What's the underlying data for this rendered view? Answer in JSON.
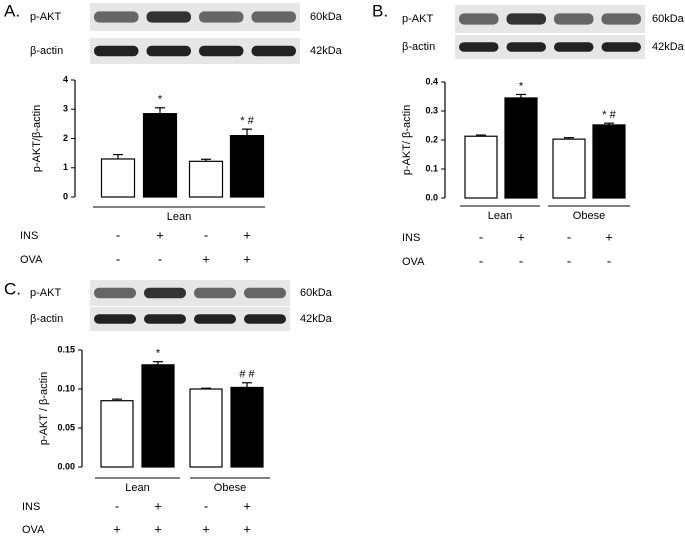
{
  "chart_data": [
    {
      "type": "bar",
      "panel": "A.",
      "blots": [
        {
          "label": "p-AKT",
          "size": "60kDa"
        },
        {
          "label": "β-actin",
          "size": "42kDa"
        }
      ],
      "y_label": "p-AKT/β-actin",
      "values": [
        1.3,
        2.85,
        1.22,
        2.1
      ],
      "errors": [
        0.15,
        0.2,
        0.07,
        0.22
      ],
      "annotations": [
        null,
        "*",
        null,
        "* #"
      ],
      "bar_colors": [
        "#ffffff",
        "#000000",
        "#ffffff",
        "#000000"
      ],
      "ylim": [
        0,
        4
      ],
      "yticks": [
        0,
        1,
        2,
        3,
        4
      ],
      "groups": [
        "Lean"
      ],
      "conditions": [
        {
          "name": "INS",
          "signs": [
            "-",
            "+",
            "-",
            "+"
          ]
        },
        {
          "name": "OVA",
          "signs": [
            "-",
            "-",
            "+",
            "+"
          ]
        }
      ]
    },
    {
      "type": "bar",
      "panel": "B.",
      "blots": [
        {
          "label": "p-AKT",
          "size": "60kDa"
        },
        {
          "label": "β-actin",
          "size": "42kDa"
        }
      ],
      "y_label": "p-AKT/ β-actin",
      "values": [
        0.213,
        0.345,
        0.203,
        0.252
      ],
      "errors": [
        0.004,
        0.012,
        0.005,
        0.006
      ],
      "annotations": [
        null,
        "*",
        null,
        "* #"
      ],
      "bar_colors": [
        "#ffffff",
        "#000000",
        "#ffffff",
        "#000000"
      ],
      "ylim": [
        0,
        0.4
      ],
      "yticks": [
        {
          "value": 0,
          "label": "0.0"
        },
        0.1,
        0.2,
        0.3,
        0.4
      ],
      "groups": [
        "Lean",
        "Obese"
      ],
      "conditions": [
        {
          "name": "INS",
          "signs": [
            "-",
            "+",
            "-",
            "+"
          ]
        },
        {
          "name": "OVA",
          "signs": [
            "-",
            "-",
            "-",
            "-"
          ]
        }
      ]
    },
    {
      "type": "bar",
      "panel": "C.",
      "blots": [
        {
          "label": "p-AKT",
          "size": "60kDa"
        },
        {
          "label": "β-actin",
          "size": "42kDa"
        }
      ],
      "y_label": "p-AKT / β-actin",
      "values": [
        0.085,
        0.131,
        0.1,
        0.102
      ],
      "errors": [
        0.002,
        0.004,
        0.001,
        0.006
      ],
      "annotations": [
        null,
        "*",
        null,
        "# #"
      ],
      "bar_colors": [
        "#ffffff",
        "#000000",
        "#ffffff",
        "#000000"
      ],
      "ylim": [
        0,
        0.15
      ],
      "yticks": [
        {
          "value": 0,
          "label": "0.00"
        },
        0.05,
        {
          "value": 0.1,
          "label": "0.10"
        },
        0.15
      ],
      "groups": [
        "Lean",
        "Obese"
      ],
      "conditions": [
        {
          "name": "INS",
          "signs": [
            "-",
            "+",
            "-",
            "+"
          ]
        },
        {
          "name": "OVA",
          "signs": [
            "+",
            "+",
            "+",
            "+"
          ]
        }
      ]
    }
  ]
}
